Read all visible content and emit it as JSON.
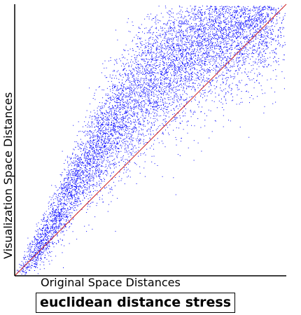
{
  "chart_data": {
    "type": "scatter",
    "title": "euclidean distance stress",
    "xlabel": "Original Space Distances",
    "ylabel": "Visualization Space Distances",
    "xlim": [
      0,
      1
    ],
    "ylim": [
      0,
      1
    ],
    "grid": false,
    "legend": "none",
    "point_color": "#0000ff",
    "reference_line": {
      "x": [
        0,
        1
      ],
      "y": [
        0,
        1
      ],
      "color": "#cc2222"
    },
    "axis_color": "#000000",
    "points_approx": [
      [
        0.04,
        0.03
      ],
      [
        0.06,
        0.04
      ],
      [
        0.08,
        0.06
      ],
      [
        0.1,
        0.08
      ],
      [
        0.12,
        0.12
      ],
      [
        0.15,
        0.16
      ],
      [
        0.18,
        0.22
      ],
      [
        0.2,
        0.28
      ],
      [
        0.22,
        0.33
      ],
      [
        0.25,
        0.38
      ],
      [
        0.28,
        0.42
      ],
      [
        0.3,
        0.44
      ],
      [
        0.33,
        0.48
      ],
      [
        0.36,
        0.52
      ],
      [
        0.4,
        0.58
      ],
      [
        0.44,
        0.62
      ],
      [
        0.48,
        0.66
      ],
      [
        0.52,
        0.7
      ],
      [
        0.56,
        0.74
      ],
      [
        0.6,
        0.78
      ],
      [
        0.65,
        0.82
      ],
      [
        0.7,
        0.85
      ],
      [
        0.75,
        0.88
      ],
      [
        0.8,
        0.92
      ],
      [
        0.85,
        0.94
      ],
      [
        0.9,
        0.96
      ],
      [
        0.95,
        0.98
      ],
      [
        0.2,
        0.12
      ],
      [
        0.3,
        0.26
      ],
      [
        0.4,
        0.38
      ],
      [
        0.5,
        0.52
      ],
      [
        0.55,
        0.6
      ],
      [
        0.35,
        0.4
      ],
      [
        0.45,
        0.7
      ],
      [
        0.6,
        0.66
      ],
      [
        0.7,
        0.72
      ],
      [
        0.25,
        0.55
      ],
      [
        0.4,
        0.78
      ],
      [
        0.5,
        0.8
      ],
      [
        0.62,
        0.9
      ]
    ]
  }
}
